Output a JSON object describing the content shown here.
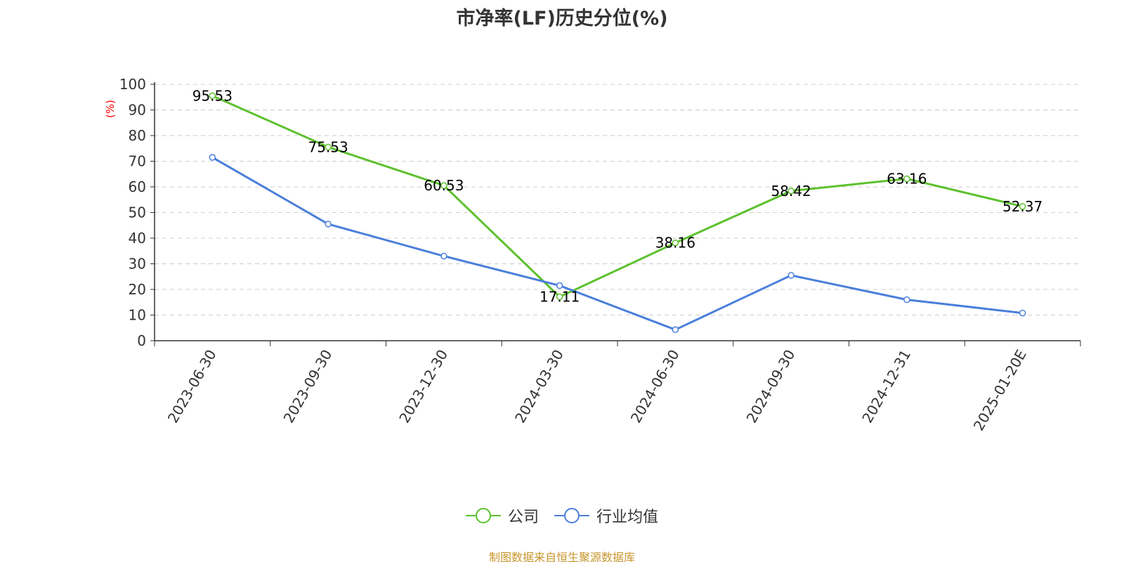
{
  "chart_data": {
    "type": "line",
    "title": "市净率(LF)历史分位(%)",
    "ylabel": "(%)",
    "ylim": [
      0,
      100
    ],
    "yticks": [
      0,
      10,
      20,
      30,
      40,
      50,
      60,
      70,
      80,
      90,
      100
    ],
    "grid": true,
    "legend_position": "bottom-center",
    "categories": [
      "2023-06-30",
      "2023-09-30",
      "2023-12-30",
      "2024-03-30",
      "2024-06-30",
      "2024-09-30",
      "2024-12-31",
      "2025-01-20E"
    ],
    "series": [
      {
        "name": "公司",
        "color": "#5cc12d",
        "values": [
          95.53,
          75.53,
          60.53,
          17.11,
          38.16,
          58.42,
          63.16,
          52.37
        ],
        "labels": [
          "95.53",
          "75.53",
          "60.53",
          "17.11",
          "38.16",
          "58.42",
          "63.16",
          "52.37"
        ]
      },
      {
        "name": "行业均值",
        "color": "#4a7fdb",
        "values": [
          71.5,
          45.5,
          33.0,
          21.5,
          4.3,
          25.5,
          16.0,
          10.8
        ]
      }
    ]
  },
  "footer": {
    "source": "制图数据来自恒生聚源数据库"
  },
  "colors": {
    "axis": "#333333",
    "grid": "#cccccc",
    "unit": "#ff0000",
    "source": "#c8952c"
  }
}
